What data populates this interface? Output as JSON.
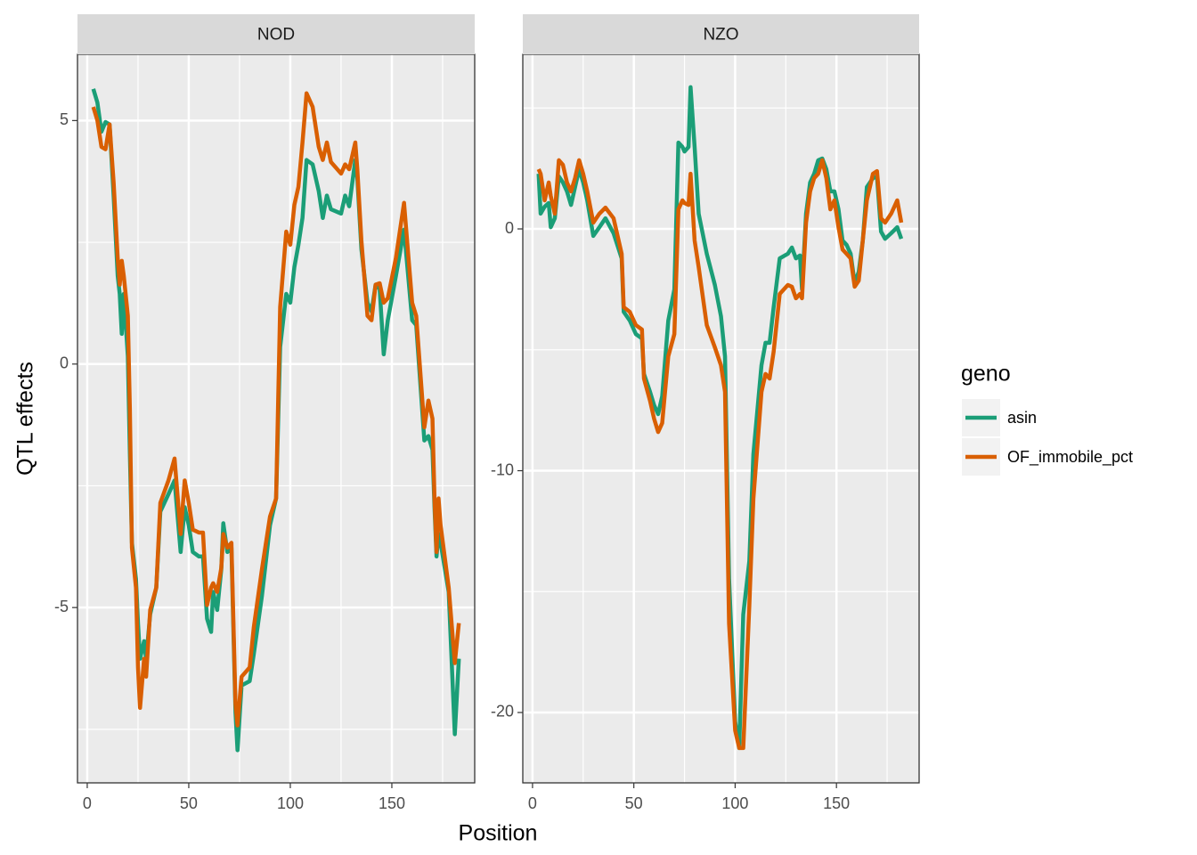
{
  "x_label": "Position",
  "y_label": "QTL effects",
  "legend_title": "geno",
  "chart_data": [
    {
      "type": "line",
      "title": "NOD",
      "x": [
        3,
        5,
        7,
        9,
        11,
        13,
        15,
        16,
        17,
        18,
        20,
        21,
        22,
        24,
        25,
        26,
        28,
        29,
        31,
        34,
        36,
        40,
        43,
        46,
        48,
        50,
        52,
        55,
        57,
        59,
        61,
        62,
        64,
        66,
        67,
        69,
        71,
        72,
        73,
        74,
        76,
        80,
        82,
        86,
        90,
        93,
        95,
        98,
        100,
        102,
        104,
        106,
        108,
        111,
        114,
        116,
        118,
        120,
        125,
        127,
        129,
        132,
        133,
        135,
        138,
        140,
        142,
        144,
        146,
        148,
        152,
        156,
        160,
        162,
        166,
        168,
        170,
        171,
        172,
        173,
        174,
        178,
        181,
        183
      ],
      "series": [
        {
          "name": "asin",
          "color": "#1b9e77",
          "values": [
            5.65,
            5.37,
            4.77,
            4.97,
            4.92,
            3.45,
            1.81,
            1.44,
            0.62,
            1.44,
            0.16,
            -1.85,
            -3.67,
            -4.41,
            -5.32,
            -6.05,
            -5.69,
            -6.05,
            -5.14,
            -4.59,
            -3.03,
            -2.67,
            -2.39,
            -3.86,
            -2.94,
            -3.31,
            -3.86,
            -3.95,
            -3.95,
            -5.23,
            -5.5,
            -4.68,
            -5.05,
            -4.22,
            -3.27,
            -3.86,
            -3.77,
            -5.5,
            -7.15,
            -7.93,
            -6.6,
            -6.51,
            -5.96,
            -4.77,
            -3.31,
            -2.76,
            0.35,
            1.44,
            1.26,
            1.99,
            2.45,
            3.0,
            4.19,
            4.1,
            3.55,
            3.0,
            3.46,
            3.18,
            3.09,
            3.46,
            3.24,
            4.19,
            3.82,
            2.36,
            1.26,
            1.08,
            1.63,
            1.54,
            0.2,
            0.9,
            1.81,
            2.76,
            0.9,
            0.8,
            -1.57,
            -1.48,
            -1.76,
            -2.94,
            -3.95,
            -3.49,
            -3.67,
            -4.68,
            -7.6,
            -6.05
          ]
        },
        {
          "name": "OF_immobile_pct",
          "color": "#d95f02",
          "values": [
            5.28,
            5.0,
            4.46,
            4.41,
            4.92,
            3.73,
            2.18,
            1.63,
            2.12,
            1.81,
            0.99,
            -0.93,
            -3.77,
            -4.59,
            -6.23,
            -7.06,
            -6.05,
            -6.42,
            -5.05,
            -4.59,
            -2.85,
            -2.39,
            -1.94,
            -3.49,
            -2.39,
            -2.85,
            -3.4,
            -3.46,
            -3.46,
            -4.95,
            -4.59,
            -4.5,
            -4.68,
            -4.19,
            -3.49,
            -3.77,
            -3.67,
            -5.32,
            -6.97,
            -7.42,
            -6.42,
            -6.23,
            -5.41,
            -4.22,
            -3.13,
            -2.76,
            1.17,
            2.72,
            2.45,
            3.27,
            3.64,
            4.55,
            5.56,
            5.28,
            4.46,
            4.19,
            4.55,
            4.15,
            3.91,
            4.1,
            4.0,
            4.55,
            4.0,
            2.54,
            0.99,
            0.9,
            1.63,
            1.66,
            1.26,
            1.35,
            2.18,
            3.31,
            1.26,
            0.99,
            -1.3,
            -0.75,
            -1.12,
            -2.76,
            -3.86,
            -2.76,
            -3.31,
            -4.59,
            -6.14,
            -5.32
          ]
        }
      ],
      "xlim": [
        -4.8,
        190.8
      ],
      "xticks": [
        0,
        50,
        100,
        150
      ],
      "ylim": [
        -8.6,
        6.36
      ],
      "yticks": [
        -5,
        0,
        5
      ],
      "grid": true
    },
    {
      "type": "line",
      "title": "NZO",
      "x": [
        3,
        4,
        6,
        8,
        9,
        11,
        13,
        15,
        17,
        19,
        21,
        23,
        25,
        27,
        30,
        33,
        36,
        40,
        44,
        45,
        48,
        51,
        54,
        55,
        58,
        60,
        62,
        64,
        67,
        70,
        72,
        74,
        75,
        77,
        78,
        80,
        82,
        86,
        90,
        93,
        95,
        97,
        100,
        102,
        104,
        107,
        109,
        113,
        115,
        117,
        119,
        122,
        126,
        128,
        130,
        132,
        133,
        135,
        137,
        139,
        141,
        143,
        145,
        147,
        149,
        151,
        153,
        155,
        157,
        159,
        161,
        163,
        165,
        168,
        170,
        172,
        174,
        177,
        180,
        182
      ],
      "series": [
        {
          "color": "#1b9e77",
          "values": [
            2.28,
            0.63,
            0.92,
            1.07,
            0.07,
            0.44,
            2.17,
            1.92,
            1.55,
            0.99,
            1.73,
            2.47,
            1.92,
            1.18,
            -0.29,
            0.07,
            0.44,
            -0.18,
            -1.22,
            -3.43,
            -3.79,
            -4.35,
            -4.53,
            -6.0,
            -6.74,
            -7.29,
            -7.66,
            -6.92,
            -3.79,
            -2.5,
            3.57,
            3.39,
            3.2,
            3.39,
            5.86,
            3.39,
            0.63,
            -1.03,
            -2.32,
            -3.61,
            -5.27,
            -14.48,
            -20.37,
            -21.47,
            -15.95,
            -13.74,
            -9.32,
            -5.64,
            -4.71,
            -4.71,
            -3.24,
            -1.22,
            -1.03,
            -0.77,
            -1.22,
            -1.1,
            -2.5,
            0.63,
            1.92,
            2.28,
            2.84,
            2.91,
            2.47,
            1.55,
            1.55,
            0.81,
            -0.48,
            -0.66,
            -1.03,
            -2.25,
            -1.77,
            -0.48,
            1.73,
            2.1,
            2.17,
            -0.11,
            -0.41,
            -0.18,
            0.07,
            -0.41
          ]
        },
        {
          "color": "#d95f02",
          "values": [
            2.47,
            2.28,
            1.18,
            1.92,
            1.36,
            0.63,
            2.84,
            2.65,
            1.92,
            1.55,
            2.1,
            2.84,
            2.28,
            1.55,
            0.26,
            0.63,
            0.88,
            0.44,
            -1.03,
            -3.24,
            -3.43,
            -3.98,
            -4.16,
            -6.19,
            -7.11,
            -7.85,
            -8.4,
            -8.03,
            -5.27,
            -4.35,
            0.81,
            1.18,
            1.07,
            0.99,
            2.28,
            -0.48,
            -1.58,
            -3.98,
            -4.9,
            -5.64,
            -6.74,
            -16.32,
            -20.74,
            -21.47,
            -21.47,
            -15.58,
            -11.16,
            -6.74,
            -6.0,
            -6.19,
            -5.08,
            -2.69,
            -2.32,
            -2.39,
            -2.87,
            -2.69,
            -2.87,
            0.26,
            1.55,
            2.1,
            2.28,
            2.84,
            2.1,
            0.81,
            1.18,
            0.07,
            -0.85,
            -1.03,
            -1.22,
            -2.39,
            -2.14,
            -0.48,
            1.18,
            2.28,
            2.39,
            0.44,
            0.26,
            0.63,
            1.18,
            0.26
          ]
        }
      ],
      "xlim": [
        -4.8,
        190.8
      ],
      "xticks": [
        0,
        50,
        100,
        150
      ],
      "ylim": [
        -22.91,
        7.22
      ],
      "yticks": [
        -20,
        -10,
        0
      ],
      "grid": true
    }
  ]
}
